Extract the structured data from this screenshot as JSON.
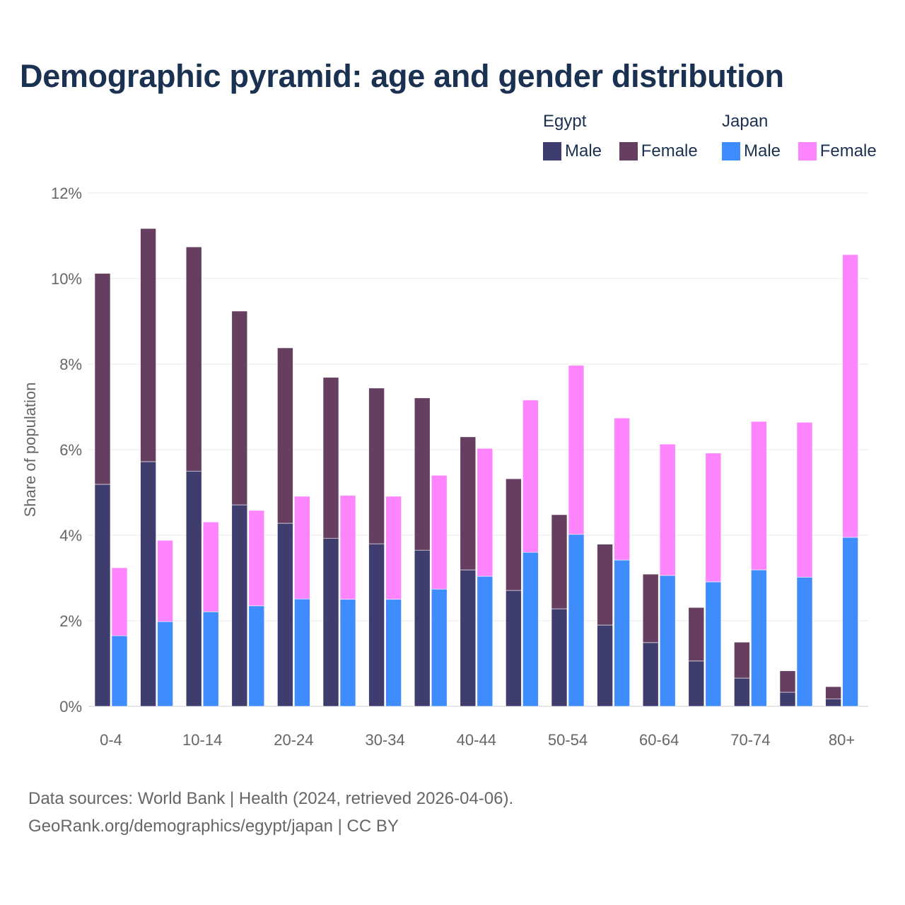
{
  "chart_data": {
    "type": "bar",
    "stacked": true,
    "grouped": true,
    "title": "Demographic pyramid: age and gender distribution",
    "ylabel": "Share of population",
    "xlabel": "",
    "ylim": [
      0,
      12
    ],
    "yticks": [
      0,
      2,
      4,
      6,
      8,
      10,
      12
    ],
    "ytick_labels": [
      "0%",
      "2%",
      "4%",
      "6%",
      "8%",
      "10%",
      "12%"
    ],
    "grid": true,
    "categories": [
      "0-4",
      "5-9",
      "10-14",
      "15-19",
      "20-24",
      "25-29",
      "30-34",
      "35-39",
      "40-44",
      "45-49",
      "50-54",
      "55-59",
      "60-64",
      "65-69",
      "70-74",
      "75-79",
      "80+"
    ],
    "xtick_labels_shown": [
      "0-4",
      "10-14",
      "20-24",
      "30-34",
      "40-44",
      "50-54",
      "60-64",
      "70-74",
      "80+"
    ],
    "legend_position": "top-right",
    "groups": [
      {
        "name": "Egypt",
        "series": [
          {
            "name": "Male",
            "color": "#3f3d6e",
            "values": [
              5.19,
              5.72,
              5.5,
              4.71,
              4.28,
              3.93,
              3.8,
              3.65,
              3.19,
              2.71,
              2.28,
              1.9,
              1.49,
              1.06,
              0.66,
              0.33,
              0.17
            ]
          },
          {
            "name": "Female",
            "color": "#663f60",
            "values": [
              4.93,
              5.45,
              5.24,
              4.53,
              4.1,
              3.76,
              3.64,
              3.56,
              3.11,
              2.61,
              2.2,
              1.89,
              1.6,
              1.25,
              0.84,
              0.5,
              0.29
            ]
          }
        ]
      },
      {
        "name": "Japan",
        "series": [
          {
            "name": "Male",
            "color": "#3f8cff",
            "values": [
              1.65,
              1.98,
              2.21,
              2.35,
              2.51,
              2.5,
              2.5,
              2.74,
              3.04,
              3.6,
              4.02,
              3.42,
              3.06,
              2.91,
              3.19,
              3.02,
              3.95
            ]
          },
          {
            "name": "Female",
            "color": "#ff85ff",
            "values": [
              1.59,
              1.9,
              2.1,
              2.23,
              2.4,
              2.43,
              2.41,
              2.66,
              2.99,
              3.56,
              3.95,
              3.32,
              3.07,
              3.01,
              3.47,
              3.62,
              6.61
            ]
          }
        ]
      }
    ]
  },
  "footer": {
    "line1": "Data sources: World Bank | Health (2024, retrieved 2026-04-06).",
    "line2": "GeoRank.org/demographics/egypt/japan | CC BY"
  }
}
